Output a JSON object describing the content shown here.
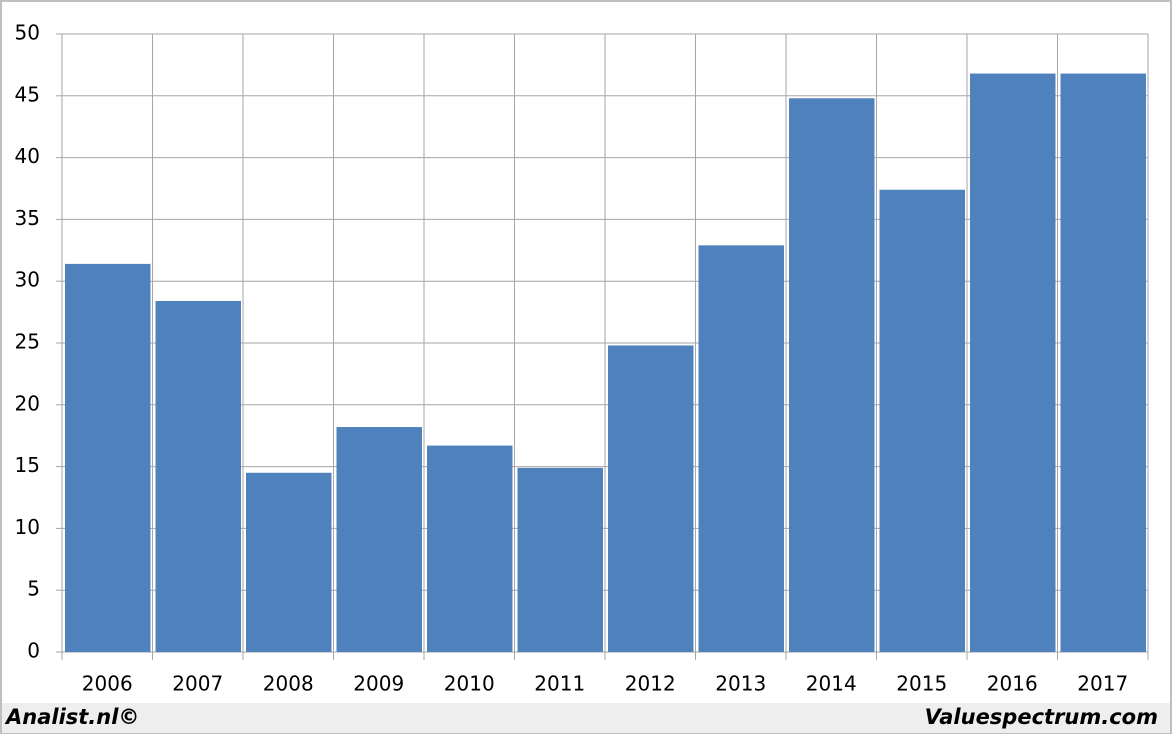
{
  "chart_data": {
    "type": "bar",
    "categories": [
      "2006",
      "2007",
      "2008",
      "2009",
      "2010",
      "2011",
      "2012",
      "2013",
      "2014",
      "2015",
      "2016",
      "2017"
    ],
    "values": [
      31.4,
      28.4,
      14.5,
      18.2,
      16.7,
      14.9,
      24.8,
      32.9,
      44.8,
      37.4,
      46.8,
      46.8
    ],
    "color": "#4f81bd",
    "ylim": [
      0,
      50
    ],
    "yticks": [
      0,
      5,
      10,
      15,
      20,
      25,
      30,
      35,
      40,
      45,
      50
    ],
    "grid": true,
    "credits": [
      "Analist.nl©",
      "Valuespectrum.com"
    ]
  }
}
